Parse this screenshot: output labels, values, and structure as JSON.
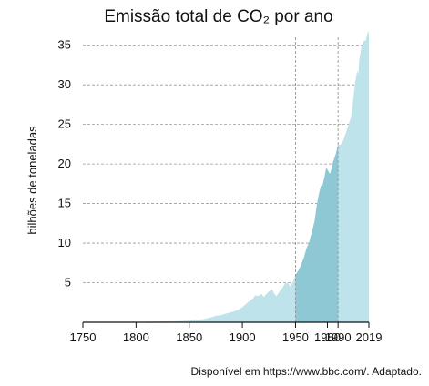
{
  "chart_data": {
    "type": "area",
    "title": "Emissão total de CO₂ por ano",
    "xlabel": "",
    "ylabel": "bilhões de toneladas",
    "xlim": [
      1750,
      2019
    ],
    "ylim": [
      0,
      36
    ],
    "x_ticks": [
      1750,
      1800,
      1850,
      1900,
      1950,
      1980,
      1990,
      2019
    ],
    "y_ticks": [
      5,
      10,
      15,
      20,
      25,
      30,
      35
    ],
    "grid": "horizontal dashed",
    "highlight_range": [
      1950,
      1990
    ],
    "vertical_markers": [
      1950,
      1990
    ],
    "colors": {
      "area": "#bfe3ea",
      "highlight": "#8ec8d4",
      "grid": "#9a9a9a",
      "axis": "#111111"
    },
    "series": [
      {
        "x": [
          1750,
          1800,
          1840,
          1850,
          1860,
          1865,
          1870,
          1875,
          1880,
          1885,
          1890,
          1895,
          1900,
          1905,
          1910,
          1912,
          1915,
          1918,
          1920,
          1922,
          1925,
          1928,
          1930,
          1932,
          1935,
          1938,
          1940,
          1943,
          1945,
          1948,
          1950,
          1953,
          1955,
          1958,
          1960,
          1963,
          1965,
          1968,
          1970,
          1972,
          1974,
          1975,
          1977,
          1979,
          1980,
          1982,
          1983,
          1985,
          1988,
          1990,
          1992,
          1995,
          1998,
          2000,
          2002,
          2004,
          2006,
          2008,
          2009,
          2010,
          2012,
          2014,
          2016,
          2018,
          2019
        ],
        "values": [
          0,
          0.05,
          0.15,
          0.2,
          0.3,
          0.45,
          0.6,
          0.8,
          0.9,
          1.1,
          1.3,
          1.5,
          1.9,
          2.5,
          3.0,
          3.4,
          3.3,
          3.6,
          3.2,
          3.5,
          3.9,
          4.2,
          3.6,
          3.3,
          3.9,
          4.4,
          4.9,
          5.0,
          4.5,
          5.2,
          6.0,
          6.6,
          7.2,
          8.2,
          9.2,
          10.2,
          11.2,
          12.8,
          14.8,
          16.2,
          17.3,
          17.1,
          18.2,
          19.6,
          19.3,
          18.8,
          18.9,
          20.1,
          21.3,
          22.5,
          22.4,
          23.0,
          24.2,
          25.0,
          25.8,
          27.8,
          30.2,
          31.8,
          31.3,
          33.2,
          34.8,
          35.5,
          35.6,
          36.6,
          36.7
        ]
      }
    ]
  },
  "source": "Disponível em https://www.bbc.com/. Adaptado."
}
